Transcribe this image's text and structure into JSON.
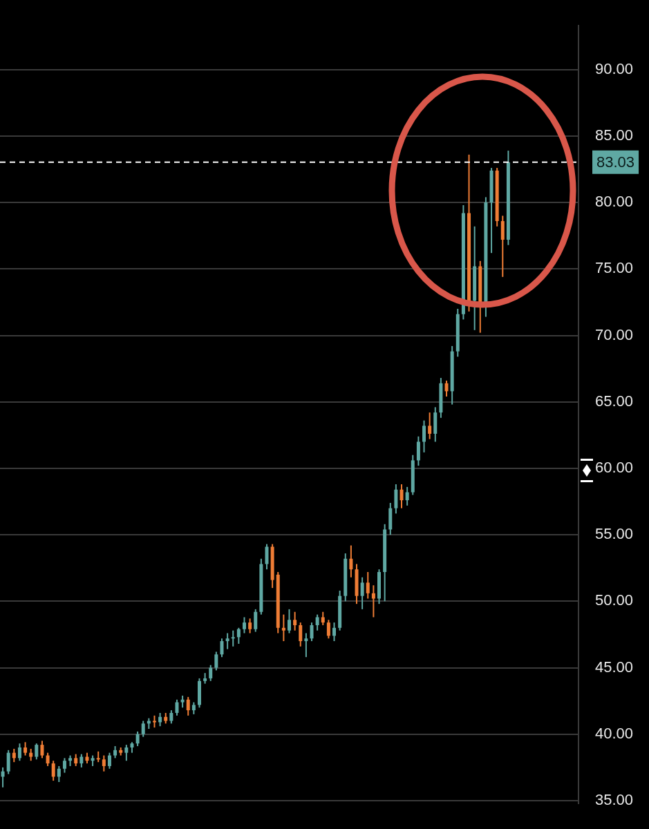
{
  "chart_data": {
    "type": "candlestick",
    "categories": [
      null,
      null,
      null,
      null,
      null,
      null,
      null,
      null,
      null,
      null,
      null,
      null,
      null,
      null,
      null,
      null,
      null,
      null,
      null,
      null,
      null,
      null,
      null,
      null,
      null,
      null,
      null,
      null,
      null,
      null,
      null,
      null,
      null,
      null,
      null,
      null,
      null,
      null,
      null,
      null,
      null,
      null,
      null,
      null,
      null,
      null,
      null,
      null,
      null,
      null,
      null,
      null,
      null,
      null,
      null,
      null,
      null,
      null,
      null,
      null,
      null,
      null,
      null,
      null,
      null,
      null,
      null,
      null,
      null,
      null,
      null,
      null,
      null,
      null,
      null,
      null,
      null,
      null,
      null,
      null,
      null,
      null,
      null,
      null,
      null,
      null,
      null,
      null,
      null,
      null,
      null,
      null,
      null,
      null,
      null,
      null,
      null,
      null,
      null,
      null,
      null,
      null,
      null
    ],
    "ohlc": [
      [
        36.8,
        37.5,
        36.0,
        37.2
      ],
      [
        37.2,
        38.8,
        37.0,
        38.6
      ],
      [
        38.6,
        38.9,
        37.9,
        38.2
      ],
      [
        38.2,
        39.3,
        38.0,
        39.0
      ],
      [
        39.0,
        39.4,
        38.4,
        38.6
      ],
      [
        38.6,
        38.9,
        38.0,
        38.3
      ],
      [
        38.3,
        39.3,
        38.1,
        39.2
      ],
      [
        39.2,
        39.5,
        38.2,
        38.4
      ],
      [
        38.4,
        38.6,
        37.6,
        37.8
      ],
      [
        37.8,
        38.0,
        36.5,
        36.8
      ],
      [
        36.8,
        37.6,
        36.4,
        37.4
      ],
      [
        37.4,
        38.2,
        37.1,
        38.0
      ],
      [
        38.0,
        38.4,
        37.6,
        38.2
      ],
      [
        38.2,
        38.5,
        37.6,
        37.8
      ],
      [
        37.8,
        38.5,
        37.5,
        38.3
      ],
      [
        38.3,
        38.6,
        37.8,
        38.0
      ],
      [
        38.0,
        38.4,
        37.6,
        38.2
      ],
      [
        38.2,
        38.7,
        37.9,
        38.1
      ],
      [
        38.1,
        38.4,
        37.2,
        37.6
      ],
      [
        37.6,
        38.6,
        37.4,
        38.4
      ],
      [
        38.4,
        39.1,
        38.2,
        38.8
      ],
      [
        38.8,
        39.0,
        38.4,
        38.6
      ],
      [
        38.6,
        39.2,
        38.0,
        39.0
      ],
      [
        39.0,
        39.4,
        38.6,
        39.3
      ],
      [
        39.3,
        40.2,
        39.1,
        40.0
      ],
      [
        40.0,
        41.0,
        39.8,
        40.8
      ],
      [
        40.8,
        41.2,
        40.4,
        41.0
      ],
      [
        41.0,
        41.4,
        40.5,
        40.9
      ],
      [
        40.9,
        41.6,
        40.6,
        41.3
      ],
      [
        41.3,
        41.6,
        40.8,
        41.0
      ],
      [
        41.0,
        41.8,
        40.8,
        41.6
      ],
      [
        41.6,
        42.6,
        41.4,
        42.4
      ],
      [
        42.4,
        42.9,
        42.0,
        42.6
      ],
      [
        42.6,
        42.8,
        41.4,
        41.8
      ],
      [
        41.8,
        42.4,
        41.5,
        42.2
      ],
      [
        42.2,
        44.2,
        42.0,
        44.0
      ],
      [
        44.0,
        44.6,
        43.8,
        44.2
      ],
      [
        44.2,
        45.2,
        44.0,
        45.0
      ],
      [
        45.0,
        46.2,
        44.8,
        46.0
      ],
      [
        46.0,
        47.2,
        45.8,
        47.0
      ],
      [
        47.0,
        47.6,
        46.4,
        47.2
      ],
      [
        47.2,
        47.8,
        46.6,
        47.3
      ],
      [
        47.3,
        48.0,
        46.8,
        47.9
      ],
      [
        47.9,
        48.8,
        47.6,
        48.4
      ],
      [
        48.4,
        48.7,
        47.6,
        47.9
      ],
      [
        47.9,
        49.4,
        47.7,
        49.2
      ],
      [
        49.2,
        53.2,
        49.0,
        52.8
      ],
      [
        52.8,
        54.3,
        52.4,
        54.1
      ],
      [
        54.1,
        54.3,
        51.0,
        51.6
      ],
      [
        52.0,
        52.2,
        47.6,
        48.0
      ],
      [
        48.0,
        49.0,
        47.0,
        47.8
      ],
      [
        47.8,
        49.4,
        47.6,
        48.6
      ],
      [
        48.6,
        49.2,
        47.8,
        48.2
      ],
      [
        48.2,
        48.4,
        46.6,
        47.0
      ],
      [
        47.0,
        47.6,
        45.8,
        47.2
      ],
      [
        47.2,
        48.4,
        47.0,
        48.2
      ],
      [
        48.2,
        49.0,
        47.8,
        48.8
      ],
      [
        48.8,
        49.2,
        48.2,
        48.4
      ],
      [
        48.4,
        48.6,
        47.2,
        47.4
      ],
      [
        47.4,
        48.4,
        47.0,
        48.0
      ],
      [
        48.0,
        50.8,
        47.8,
        50.4
      ],
      [
        50.4,
        53.6,
        50.0,
        53.2
      ],
      [
        53.2,
        54.2,
        51.8,
        52.4
      ],
      [
        52.4,
        52.8,
        49.8,
        50.4
      ],
      [
        50.4,
        51.8,
        49.4,
        51.4
      ],
      [
        51.4,
        52.2,
        50.2,
        50.6
      ],
      [
        50.6,
        51.2,
        48.8,
        50.2
      ],
      [
        50.2,
        52.4,
        49.8,
        52.2
      ],
      [
        52.2,
        55.8,
        50.0,
        55.4
      ],
      [
        55.4,
        57.4,
        55.0,
        57.0
      ],
      [
        57.0,
        58.8,
        56.6,
        58.4
      ],
      [
        58.4,
        58.8,
        57.0,
        57.6
      ],
      [
        57.6,
        58.6,
        57.2,
        58.2
      ],
      [
        58.2,
        61.0,
        58.0,
        60.6
      ],
      [
        60.6,
        62.4,
        60.2,
        62.0
      ],
      [
        62.0,
        63.6,
        61.2,
        63.2
      ],
      [
        63.2,
        64.2,
        62.2,
        62.6
      ],
      [
        62.6,
        64.6,
        62.0,
        64.2
      ],
      [
        64.2,
        66.8,
        63.8,
        66.4
      ],
      [
        66.4,
        66.6,
        65.4,
        65.8
      ],
      [
        65.8,
        69.2,
        64.8,
        68.8
      ],
      [
        68.8,
        72.0,
        68.4,
        71.6
      ],
      [
        71.6,
        79.8,
        71.2,
        79.2
      ],
      [
        79.2,
        83.6,
        71.8,
        72.6
      ],
      [
        72.6,
        78.2,
        70.4,
        75.2
      ],
      [
        75.2,
        75.6,
        70.2,
        72.2
      ],
      [
        72.2,
        80.4,
        71.4,
        80.0
      ],
      [
        80.0,
        82.6,
        76.2,
        82.4
      ],
      [
        82.4,
        82.6,
        78.2,
        78.6
      ],
      [
        78.6,
        79.0,
        74.4,
        77.2
      ],
      [
        77.2,
        83.9,
        76.8,
        83.03
      ],
      null,
      null,
      null,
      null,
      null,
      null,
      null,
      null,
      null,
      null,
      null,
      null
    ],
    "colors": [
      "#5fa8a3",
      "#5fa8a3",
      "#ef7d35",
      "#5fa8a3",
      "#ef7d35",
      "#ef7d35",
      "#5fa8a3",
      "#ef7d35",
      "#ef7d35",
      "#ef7d35",
      "#5fa8a3",
      "#5fa8a3",
      "#5fa8a3",
      "#ef7d35",
      "#5fa8a3",
      "#ef7d35",
      "#5fa8a3",
      "#ef7d35",
      "#ef7d35",
      "#5fa8a3",
      "#5fa8a3",
      "#ef7d35",
      "#5fa8a3",
      "#5fa8a3",
      "#5fa8a3",
      "#5fa8a3",
      "#5fa8a3",
      "#ef7d35",
      "#5fa8a3",
      "#ef7d35",
      "#5fa8a3",
      "#5fa8a3",
      "#5fa8a3",
      "#ef7d35",
      "#5fa8a3",
      "#5fa8a3",
      "#5fa8a3",
      "#5fa8a3",
      "#5fa8a3",
      "#5fa8a3",
      "#5fa8a3",
      "#5fa8a3",
      "#5fa8a3",
      "#5fa8a3",
      "#ef7d35",
      "#5fa8a3",
      "#5fa8a3",
      "#5fa8a3",
      "#ef7d35",
      "#ef7d35",
      "#ef7d35",
      "#5fa8a3",
      "#ef7d35",
      "#ef7d35",
      "#5fa8a3",
      "#5fa8a3",
      "#5fa8a3",
      "#ef7d35",
      "#ef7d35",
      "#5fa8a3",
      "#5fa8a3",
      "#5fa8a3",
      "#ef7d35",
      "#ef7d35",
      "#5fa8a3",
      "#ef7d35",
      "#ef7d35",
      "#5fa8a3",
      "#5fa8a3",
      "#5fa8a3",
      "#5fa8a3",
      "#ef7d35",
      "#5fa8a3",
      "#5fa8a3",
      "#5fa8a3",
      "#5fa8a3",
      "#ef7d35",
      "#5fa8a3",
      "#5fa8a3",
      "#ef7d35",
      "#5fa8a3",
      "#5fa8a3",
      "#5fa8a3",
      "#ef7d35",
      "#5fa8a3",
      "#ef7d35",
      "#5fa8a3",
      "#5fa8a3",
      "#ef7d35",
      "#ef7d35",
      "#5fa8a3",
      null,
      null,
      null,
      null,
      null,
      null,
      null,
      null,
      null,
      null,
      null,
      null
    ],
    "ylim": [
      34.8,
      93.3
    ],
    "yticks": [
      {
        "value": 35,
        "label": "35.00"
      },
      {
        "value": 40,
        "label": "40.00"
      },
      {
        "value": 45,
        "label": "45.00"
      },
      {
        "value": 50,
        "label": "50.00"
      },
      {
        "value": 55,
        "label": "55.00"
      },
      {
        "value": 60,
        "label": "60.00"
      },
      {
        "value": 65,
        "label": "65.00"
      },
      {
        "value": 70,
        "label": "70.00"
      },
      {
        "value": 75,
        "label": "75.00"
      },
      {
        "value": 80,
        "label": "80.00"
      },
      {
        "value": 85,
        "label": "85.00"
      },
      {
        "value": 90,
        "label": "90.00"
      }
    ],
    "ref_lines": [
      {
        "axis": "y",
        "value": 83.03,
        "label": "83.03",
        "color": "#ffffff",
        "line_style": "dashed"
      }
    ],
    "grid": "y",
    "legend": false,
    "tick_labels": "y"
  }
}
